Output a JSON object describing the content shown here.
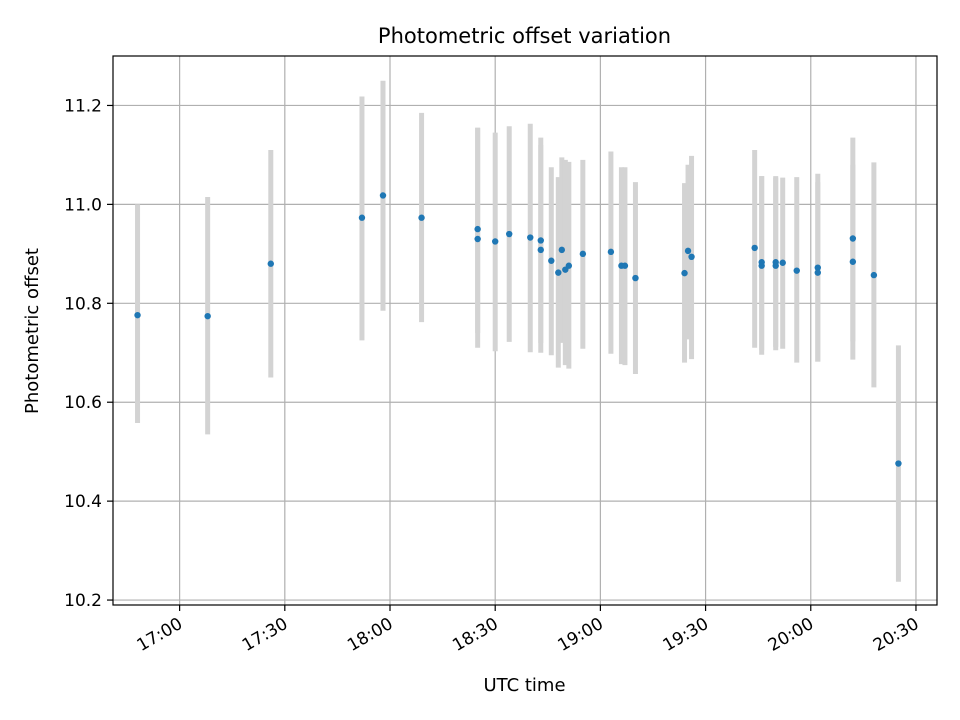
{
  "chart_data": {
    "type": "scatter",
    "title": "Photometric offset variation",
    "xlabel": "UTC time",
    "ylabel": "Photometric offset",
    "x_tick_labels": [
      "17:00",
      "17:30",
      "18:00",
      "18:30",
      "19:00",
      "19:30",
      "20:00",
      "20:30"
    ],
    "x_ticks": [
      "17:00",
      "17:30",
      "18:00",
      "18:30",
      "19:00",
      "19:30",
      "20:00",
      "20:30"
    ],
    "y_tick_labels": [
      "10.2",
      "10.4",
      "10.6",
      "10.8",
      "11.0",
      "11.2"
    ],
    "y_ticks": [
      10.2,
      10.4,
      10.6,
      10.8,
      11.0,
      11.2
    ],
    "xlim": [
      "16:41",
      "20:36"
    ],
    "ylim": [
      10.19,
      11.3
    ],
    "grid": true,
    "colors": {
      "point": "#1f77b4",
      "errorbar": "#d3d3d3",
      "grid": "#b0b0b0"
    },
    "points": [
      {
        "x": "16:48",
        "y": 10.776,
        "lo": 10.558,
        "hi": 11.0
      },
      {
        "x": "17:08",
        "y": 10.774,
        "lo": 10.535,
        "hi": 11.015
      },
      {
        "x": "17:26",
        "y": 10.88,
        "lo": 10.65,
        "hi": 11.11
      },
      {
        "x": "17:52",
        "y": 10.973,
        "lo": 10.725,
        "hi": 11.218
      },
      {
        "x": "17:58",
        "y": 11.018,
        "lo": 10.785,
        "hi": 11.25
      },
      {
        "x": "18:09",
        "y": 10.973,
        "lo": 10.762,
        "hi": 11.185
      },
      {
        "x": "18:25",
        "y": 10.93,
        "lo": 10.71,
        "hi": 11.155
      },
      {
        "x": "18:25",
        "y": 10.95,
        "lo": 10.74,
        "hi": 11.155
      },
      {
        "x": "18:30",
        "y": 10.925,
        "lo": 10.703,
        "hi": 11.145
      },
      {
        "x": "18:34",
        "y": 10.94,
        "lo": 10.722,
        "hi": 11.158
      },
      {
        "x": "18:40",
        "y": 10.933,
        "lo": 10.701,
        "hi": 11.163
      },
      {
        "x": "18:43",
        "y": 10.927,
        "lo": 10.72,
        "hi": 11.135
      },
      {
        "x": "18:43",
        "y": 10.908,
        "lo": 10.7,
        "hi": 11.12
      },
      {
        "x": "18:46",
        "y": 10.886,
        "lo": 10.695,
        "hi": 11.075
      },
      {
        "x": "18:48",
        "y": 10.862,
        "lo": 10.67,
        "hi": 11.055
      },
      {
        "x": "18:49",
        "y": 10.908,
        "lo": 10.72,
        "hi": 11.095
      },
      {
        "x": "18:50",
        "y": 10.868,
        "lo": 10.675,
        "hi": 11.09
      },
      {
        "x": "18:51",
        "y": 10.876,
        "lo": 10.668,
        "hi": 11.086
      },
      {
        "x": "18:55",
        "y": 10.9,
        "lo": 10.708,
        "hi": 11.09
      },
      {
        "x": "19:03",
        "y": 10.904,
        "lo": 10.698,
        "hi": 11.107
      },
      {
        "x": "19:06",
        "y": 10.876,
        "lo": 10.677,
        "hi": 11.075
      },
      {
        "x": "19:07",
        "y": 10.876,
        "lo": 10.675,
        "hi": 11.075
      },
      {
        "x": "19:10",
        "y": 10.851,
        "lo": 10.657,
        "hi": 11.045
      },
      {
        "x": "19:24",
        "y": 10.861,
        "lo": 10.68,
        "hi": 11.043
      },
      {
        "x": "19:25",
        "y": 10.906,
        "lo": 10.727,
        "hi": 11.08
      },
      {
        "x": "19:26",
        "y": 10.894,
        "lo": 10.687,
        "hi": 11.098
      },
      {
        "x": "19:44",
        "y": 10.912,
        "lo": 10.71,
        "hi": 11.11
      },
      {
        "x": "19:46",
        "y": 10.876,
        "lo": 10.696,
        "hi": 11.057
      },
      {
        "x": "19:46",
        "y": 10.883,
        "lo": 10.705,
        "hi": 11.057
      },
      {
        "x": "19:50",
        "y": 10.876,
        "lo": 10.705,
        "hi": 11.054
      },
      {
        "x": "19:50",
        "y": 10.883,
        "lo": 10.712,
        "hi": 11.057
      },
      {
        "x": "19:52",
        "y": 10.882,
        "lo": 10.708,
        "hi": 11.054
      },
      {
        "x": "19:56",
        "y": 10.866,
        "lo": 10.68,
        "hi": 11.055
      },
      {
        "x": "20:02",
        "y": 10.872,
        "lo": 10.682,
        "hi": 11.062
      },
      {
        "x": "20:02",
        "y": 10.862,
        "lo": 10.682,
        "hi": 11.045
      },
      {
        "x": "20:12",
        "y": 10.931,
        "lo": 10.723,
        "hi": 11.135
      },
      {
        "x": "20:12",
        "y": 10.884,
        "lo": 10.686,
        "hi": 11.08
      },
      {
        "x": "20:18",
        "y": 10.857,
        "lo": 10.63,
        "hi": 11.085
      },
      {
        "x": "20:25",
        "y": 10.476,
        "lo": 10.237,
        "hi": 10.715
      }
    ]
  }
}
